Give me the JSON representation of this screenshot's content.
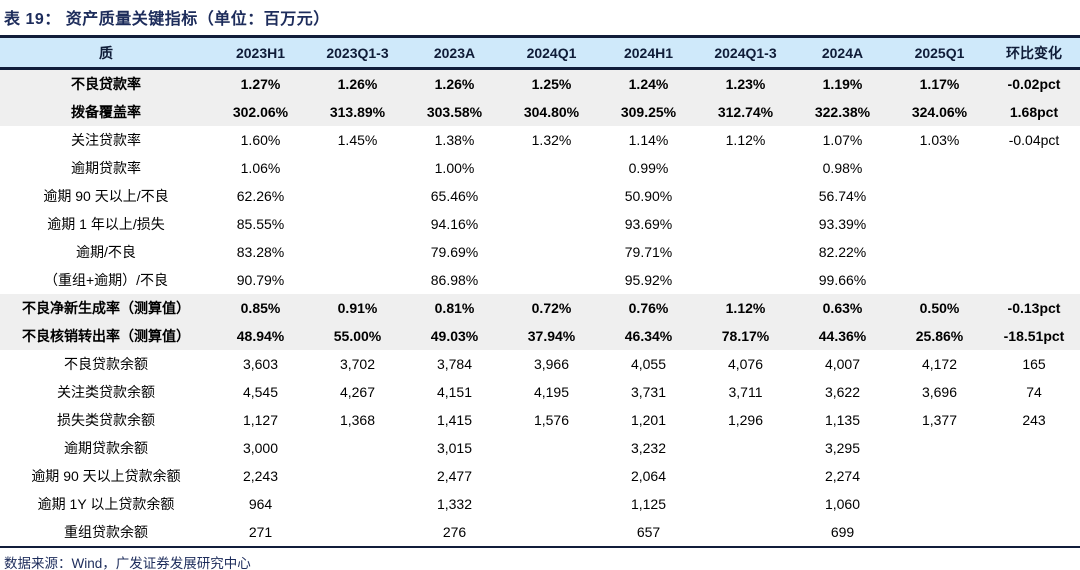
{
  "title": "表 19：  资产质量关键指标（单位：百万元）",
  "footer": {
    "source": "数据来源：Wind，广发证券发展研究中心"
  },
  "colors": {
    "title_navy": "#1d2c5b",
    "header_bg": "#cfe9fa",
    "header_text": "#0f1c38",
    "band_bg": "#efefef",
    "rule_line": "#111d3a",
    "body_text": "#000000"
  },
  "table": {
    "headers": [
      "质",
      "2023H1",
      "2023Q1-3",
      "2023A",
      "2024Q1",
      "2024H1",
      "2024Q1-3",
      "2024A",
      "2025Q1",
      "环比变化"
    ],
    "rows": [
      {
        "label": "不良贷款率",
        "emphasis": true,
        "values": [
          "1.27%",
          "1.26%",
          "1.26%",
          "1.25%",
          "1.24%",
          "1.23%",
          "1.19%",
          "1.17%",
          "-0.02pct"
        ]
      },
      {
        "label": "拨备覆盖率",
        "emphasis": true,
        "values": [
          "302.06%",
          "313.89%",
          "303.58%",
          "304.80%",
          "309.25%",
          "312.74%",
          "322.38%",
          "324.06%",
          "1.68pct"
        ]
      },
      {
        "label": "关注贷款率",
        "emphasis": false,
        "values": [
          "1.60%",
          "1.45%",
          "1.38%",
          "1.32%",
          "1.14%",
          "1.12%",
          "1.07%",
          "1.03%",
          "-0.04pct"
        ]
      },
      {
        "label": "逾期贷款率",
        "emphasis": false,
        "values": [
          "1.06%",
          "",
          "1.00%",
          "",
          "0.99%",
          "",
          "0.98%",
          "",
          ""
        ]
      },
      {
        "label": "逾期 90 天以上/不良",
        "emphasis": false,
        "values": [
          "62.26%",
          "",
          "65.46%",
          "",
          "50.90%",
          "",
          "56.74%",
          "",
          ""
        ]
      },
      {
        "label": "逾期 1 年以上/损失",
        "emphasis": false,
        "values": [
          "85.55%",
          "",
          "94.16%",
          "",
          "93.69%",
          "",
          "93.39%",
          "",
          ""
        ]
      },
      {
        "label": "逾期/不良",
        "emphasis": false,
        "values": [
          "83.28%",
          "",
          "79.69%",
          "",
          "79.71%",
          "",
          "82.22%",
          "",
          ""
        ]
      },
      {
        "label": "（重组+逾期）/不良",
        "emphasis": false,
        "values": [
          "90.79%",
          "",
          "86.98%",
          "",
          "95.92%",
          "",
          "99.66%",
          "",
          ""
        ]
      },
      {
        "label": "不良净新生成率（测算值）",
        "emphasis": true,
        "values": [
          "0.85%",
          "0.91%",
          "0.81%",
          "0.72%",
          "0.76%",
          "1.12%",
          "0.63%",
          "0.50%",
          "-0.13pct"
        ]
      },
      {
        "label": "不良核销转出率（测算值）",
        "emphasis": true,
        "values": [
          "48.94%",
          "55.00%",
          "49.03%",
          "37.94%",
          "46.34%",
          "78.17%",
          "44.36%",
          "25.86%",
          "-18.51pct"
        ]
      },
      {
        "label": "不良贷款余额",
        "emphasis": false,
        "values": [
          "3,603",
          "3,702",
          "3,784",
          "3,966",
          "4,055",
          "4,076",
          "4,007",
          "4,172",
          "165"
        ]
      },
      {
        "label": "关注类贷款余额",
        "emphasis": false,
        "values": [
          "4,545",
          "4,267",
          "4,151",
          "4,195",
          "3,731",
          "3,711",
          "3,622",
          "3,696",
          "74"
        ]
      },
      {
        "label": "损失类贷款余额",
        "emphasis": false,
        "values": [
          "1,127",
          "1,368",
          "1,415",
          "1,576",
          "1,201",
          "1,296",
          "1,135",
          "1,377",
          "243"
        ]
      },
      {
        "label": "逾期贷款余额",
        "emphasis": false,
        "values": [
          "3,000",
          "",
          "3,015",
          "",
          "3,232",
          "",
          "3,295",
          "",
          ""
        ]
      },
      {
        "label": "逾期 90 天以上贷款余额",
        "emphasis": false,
        "values": [
          "2,243",
          "",
          "2,477",
          "",
          "2,064",
          "",
          "2,274",
          "",
          ""
        ]
      },
      {
        "label": "逾期 1Y 以上贷款余额",
        "emphasis": false,
        "values": [
          "964",
          "",
          "1,332",
          "",
          "1,125",
          "",
          "1,060",
          "",
          ""
        ]
      },
      {
        "label": "重组贷款余额",
        "emphasis": false,
        "values": [
          "271",
          "",
          "276",
          "",
          "657",
          "",
          "699",
          "",
          ""
        ]
      }
    ]
  }
}
